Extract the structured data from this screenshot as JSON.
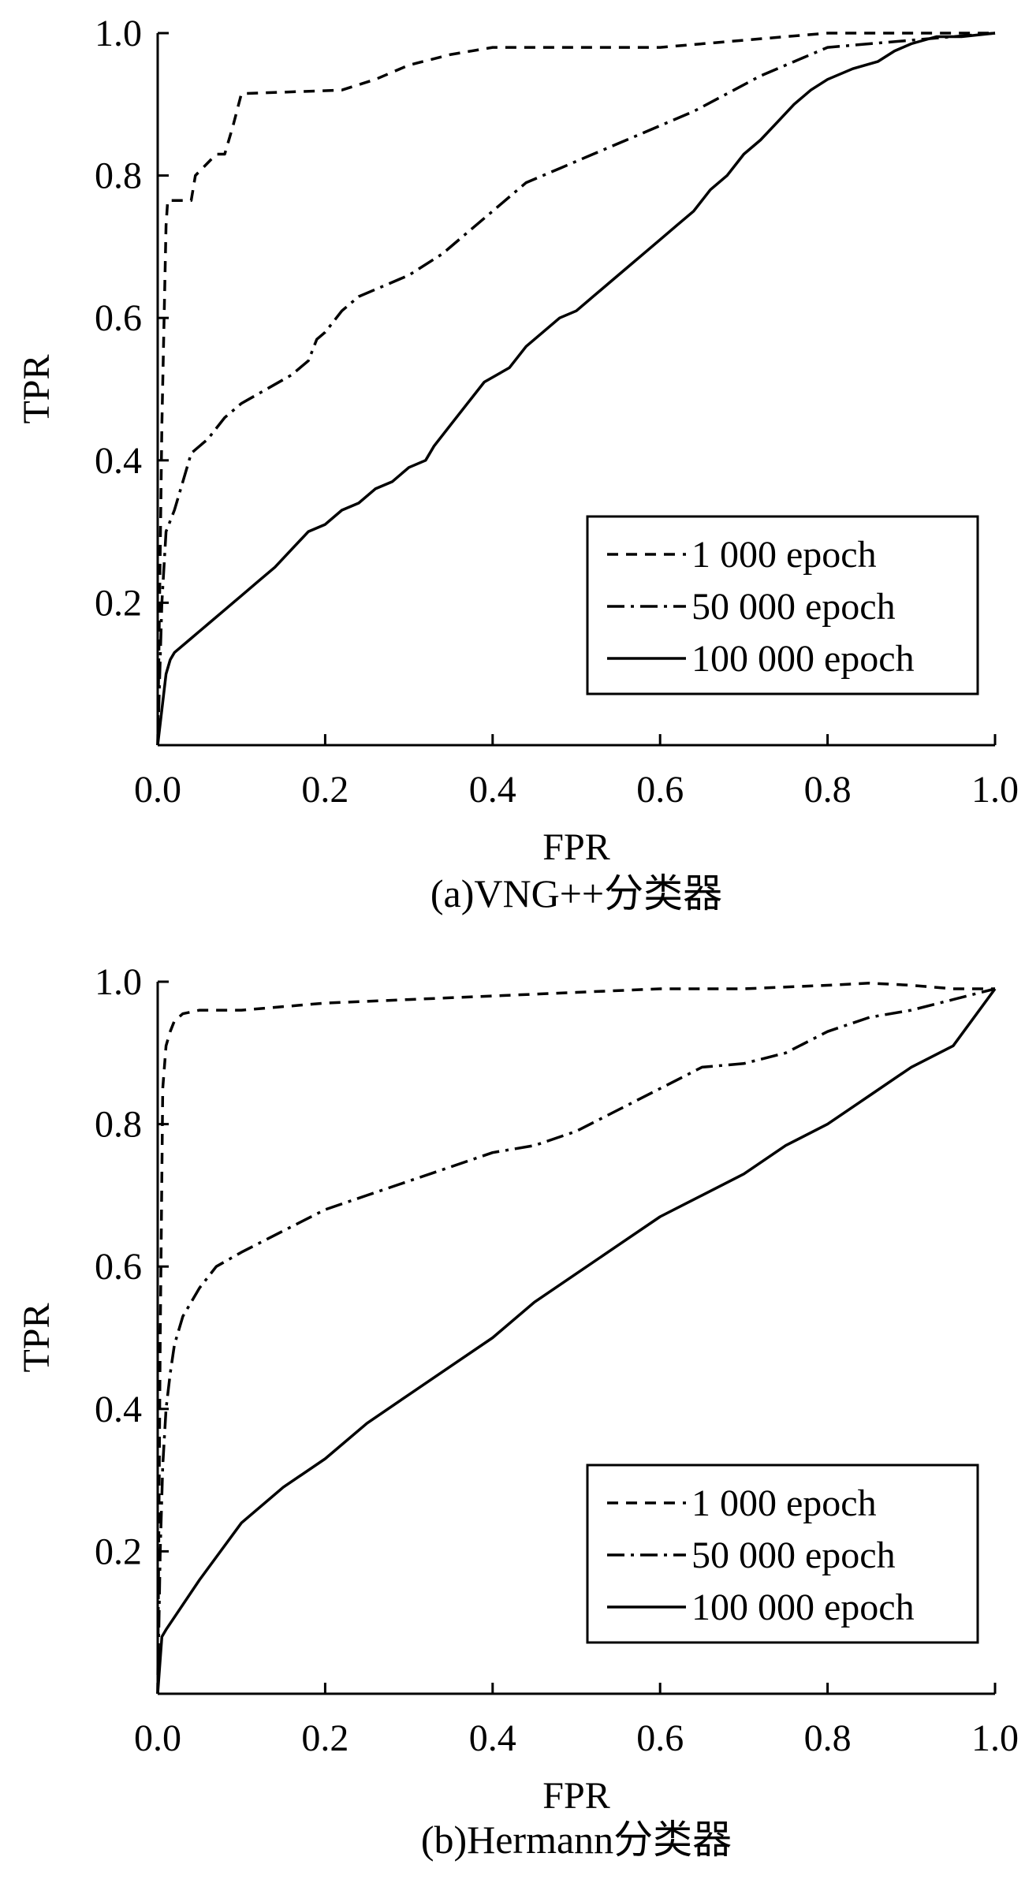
{
  "chart_data": [
    {
      "type": "line",
      "caption": "(a)VNG++分类器",
      "xlabel": "FPR",
      "ylabel": "TPR",
      "xlim": [
        0,
        1
      ],
      "ylim": [
        0,
        1
      ],
      "x_ticks": [
        "0.0",
        "0.2",
        "0.4",
        "0.6",
        "0.8",
        "1.0"
      ],
      "y_ticks": [
        "0.2",
        "0.4",
        "0.6",
        "0.8",
        "1.0"
      ],
      "grid": false,
      "legend_position": "lower-right",
      "series": [
        {
          "name": "1 000 epoch",
          "style": "dashed",
          "x": [
            0.0,
            0.005,
            0.01,
            0.012,
            0.04,
            0.045,
            0.07,
            0.08,
            0.09,
            0.1,
            0.22,
            0.26,
            0.3,
            0.35,
            0.4,
            0.45,
            0.5,
            0.55,
            0.6,
            0.7,
            0.8,
            0.9,
            1.0
          ],
          "y": [
            0.0,
            0.45,
            0.73,
            0.765,
            0.765,
            0.8,
            0.83,
            0.83,
            0.87,
            0.915,
            0.92,
            0.935,
            0.955,
            0.97,
            0.98,
            0.98,
            0.98,
            0.98,
            0.98,
            0.99,
            1.0,
            1.0,
            1.0
          ]
        },
        {
          "name": "50 000 epoch",
          "style": "dashdot",
          "x": [
            0.0,
            0.005,
            0.01,
            0.02,
            0.03,
            0.04,
            0.06,
            0.08,
            0.1,
            0.13,
            0.16,
            0.18,
            0.19,
            0.2,
            0.22,
            0.24,
            0.26,
            0.3,
            0.34,
            0.37,
            0.4,
            0.44,
            0.48,
            0.52,
            0.56,
            0.6,
            0.64,
            0.68,
            0.72,
            0.76,
            0.8,
            0.85,
            0.9,
            0.95,
            1.0
          ],
          "y": [
            0.0,
            0.2,
            0.3,
            0.33,
            0.37,
            0.41,
            0.43,
            0.46,
            0.48,
            0.5,
            0.52,
            0.54,
            0.57,
            0.58,
            0.61,
            0.63,
            0.64,
            0.66,
            0.69,
            0.72,
            0.75,
            0.79,
            0.81,
            0.83,
            0.85,
            0.87,
            0.89,
            0.915,
            0.94,
            0.96,
            0.98,
            0.985,
            0.99,
            0.995,
            1.0
          ]
        },
        {
          "name": "100 000 epoch",
          "style": "solid",
          "x": [
            0.0,
            0.005,
            0.01,
            0.015,
            0.02,
            0.04,
            0.06,
            0.08,
            0.1,
            0.12,
            0.14,
            0.16,
            0.18,
            0.2,
            0.22,
            0.24,
            0.26,
            0.28,
            0.3,
            0.32,
            0.33,
            0.35,
            0.37,
            0.39,
            0.42,
            0.44,
            0.46,
            0.48,
            0.5,
            0.52,
            0.54,
            0.56,
            0.58,
            0.6,
            0.62,
            0.64,
            0.66,
            0.68,
            0.7,
            0.72,
            0.74,
            0.76,
            0.78,
            0.8,
            0.83,
            0.86,
            0.88,
            0.9,
            0.93,
            0.96,
            1.0
          ],
          "y": [
            0.0,
            0.05,
            0.1,
            0.12,
            0.13,
            0.15,
            0.17,
            0.19,
            0.21,
            0.23,
            0.25,
            0.275,
            0.3,
            0.31,
            0.33,
            0.34,
            0.36,
            0.37,
            0.39,
            0.4,
            0.42,
            0.45,
            0.48,
            0.51,
            0.53,
            0.56,
            0.58,
            0.6,
            0.61,
            0.63,
            0.65,
            0.67,
            0.69,
            0.71,
            0.73,
            0.75,
            0.78,
            0.8,
            0.83,
            0.85,
            0.875,
            0.9,
            0.92,
            0.935,
            0.95,
            0.96,
            0.975,
            0.985,
            0.995,
            0.995,
            1.0
          ]
        }
      ]
    },
    {
      "type": "line",
      "caption": "(b)Hermann分类器",
      "xlabel": "FPR",
      "ylabel": "TPR",
      "xlim": [
        0,
        1
      ],
      "ylim": [
        0,
        1
      ],
      "x_ticks": [
        "0.0",
        "0.2",
        "0.4",
        "0.6",
        "0.8",
        "1.0"
      ],
      "y_ticks": [
        "0.2",
        "0.4",
        "0.6",
        "0.8",
        "1.0"
      ],
      "grid": false,
      "legend_position": "lower-right",
      "series": [
        {
          "name": "1 000 epoch",
          "style": "dashed",
          "x": [
            0.0,
            0.003,
            0.006,
            0.01,
            0.015,
            0.02,
            0.03,
            0.05,
            0.1,
            0.2,
            0.3,
            0.4,
            0.5,
            0.6,
            0.7,
            0.8,
            0.85,
            0.9,
            0.95,
            1.0
          ],
          "y": [
            0.0,
            0.5,
            0.85,
            0.91,
            0.93,
            0.945,
            0.955,
            0.96,
            0.96,
            0.97,
            0.975,
            0.98,
            0.985,
            0.99,
            0.99,
            0.995,
            0.998,
            0.995,
            0.99,
            0.99
          ],
          "y_adjust_end": true
        },
        {
          "name": "50 000 epoch",
          "style": "dashdot",
          "x": [
            0.0,
            0.003,
            0.006,
            0.01,
            0.015,
            0.02,
            0.03,
            0.05,
            0.07,
            0.1,
            0.15,
            0.2,
            0.25,
            0.3,
            0.35,
            0.4,
            0.45,
            0.5,
            0.55,
            0.6,
            0.65,
            0.7,
            0.75,
            0.8,
            0.85,
            0.9,
            0.95,
            1.0
          ],
          "y": [
            0.0,
            0.2,
            0.32,
            0.4,
            0.45,
            0.49,
            0.53,
            0.57,
            0.6,
            0.62,
            0.65,
            0.68,
            0.7,
            0.72,
            0.74,
            0.76,
            0.77,
            0.79,
            0.82,
            0.85,
            0.88,
            0.885,
            0.9,
            0.93,
            0.95,
            0.96,
            0.975,
            0.99
          ]
        },
        {
          "name": "100 000 epoch",
          "style": "solid",
          "x": [
            0.0,
            0.005,
            0.01,
            0.05,
            0.1,
            0.15,
            0.2,
            0.25,
            0.3,
            0.35,
            0.4,
            0.45,
            0.5,
            0.55,
            0.6,
            0.65,
            0.7,
            0.75,
            0.8,
            0.85,
            0.9,
            0.95,
            1.0
          ],
          "y": [
            0.0,
            0.08,
            0.09,
            0.16,
            0.24,
            0.29,
            0.33,
            0.38,
            0.42,
            0.46,
            0.5,
            0.55,
            0.59,
            0.63,
            0.67,
            0.7,
            0.73,
            0.77,
            0.8,
            0.84,
            0.88,
            0.91,
            0.99
          ]
        }
      ]
    }
  ]
}
